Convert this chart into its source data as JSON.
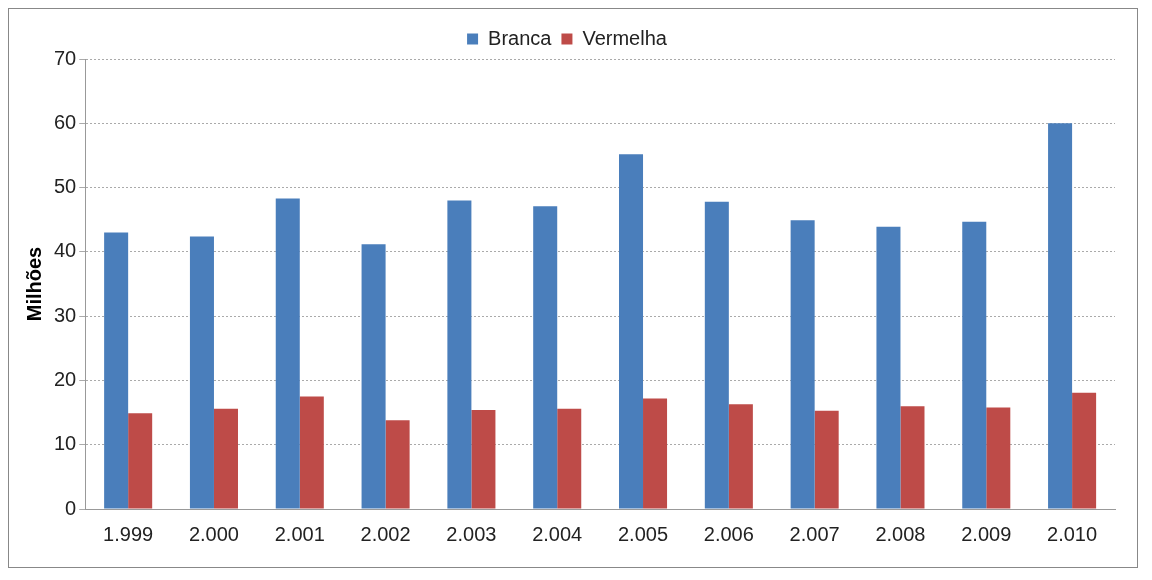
{
  "chart_data": {
    "type": "bar",
    "ylabel": "Milhões",
    "categories": [
      "1.999",
      "2.000",
      "2.001",
      "2.002",
      "2.003",
      "2.004",
      "2.005",
      "2.006",
      "2.007",
      "2.008",
      "2.009",
      "2.010"
    ],
    "series": [
      {
        "name": "Branca",
        "color": "#4a7ebb",
        "values": [
          43.0,
          42.4,
          48.3,
          41.2,
          48.0,
          47.1,
          55.2,
          47.8,
          44.9,
          43.9,
          44.7,
          60.0
        ]
      },
      {
        "name": "Vermelha",
        "color": "#be4b48",
        "values": [
          14.9,
          15.6,
          17.5,
          13.8,
          15.4,
          15.6,
          17.2,
          16.3,
          15.3,
          16.0,
          15.8,
          18.1
        ]
      }
    ],
    "ylim": [
      0,
      70
    ],
    "yticks": [
      0,
      10,
      20,
      30,
      40,
      50,
      60,
      70
    ],
    "grid": "y",
    "legend": "top"
  }
}
